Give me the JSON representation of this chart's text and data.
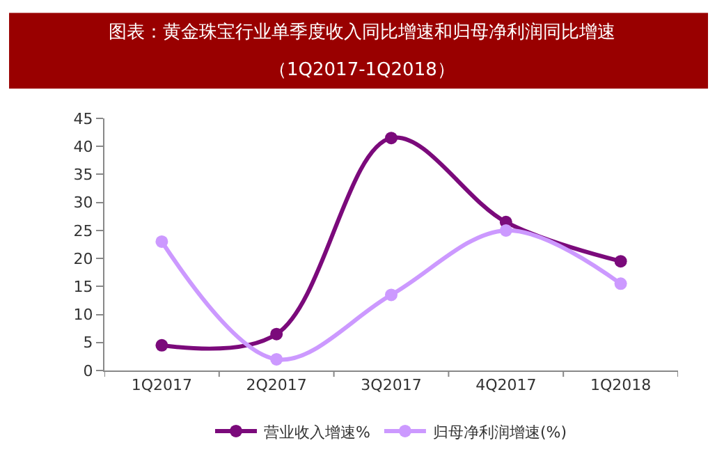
{
  "chart_data": {
    "type": "line",
    "title": "图表：黄金珠宝行业单季度收入同比增速和归母净利润同比增速",
    "subtitle": "（1Q2017-1Q2018）",
    "categories": [
      "1Q2017",
      "2Q2017",
      "3Q2017",
      "4Q2017",
      "1Q2018"
    ],
    "series": [
      {
        "name": "营业收入增速%",
        "color": "#7b0a7b",
        "values": [
          4.5,
          6.5,
          41.5,
          26.5,
          19.5
        ]
      },
      {
        "name": "归母净利润增速(%)",
        "color": "#cc99ff",
        "values": [
          23,
          2,
          13.5,
          25,
          15.5
        ]
      }
    ],
    "ylim": [
      0,
      45
    ],
    "yticks": [
      0,
      5,
      10,
      15,
      20,
      25,
      30,
      35,
      40,
      45
    ],
    "legend": "bottom",
    "marker": "circle",
    "line_style": "solid"
  }
}
